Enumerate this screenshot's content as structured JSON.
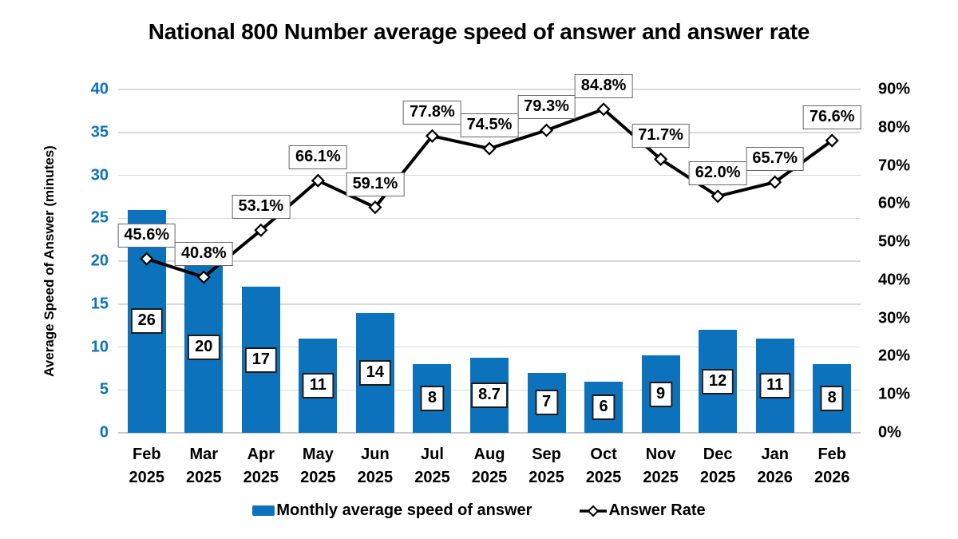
{
  "chart_data": {
    "type": "combo-bar-line",
    "title": "National 800 Number average speed of answer and answer rate",
    "categories": [
      {
        "month": "Feb",
        "year": "2025"
      },
      {
        "month": "Mar",
        "year": "2025"
      },
      {
        "month": "Apr",
        "year": "2025"
      },
      {
        "month": "May",
        "year": "2025"
      },
      {
        "month": "Jun",
        "year": "2025"
      },
      {
        "month": "Jul",
        "year": "2025"
      },
      {
        "month": "Aug",
        "year": "2025"
      },
      {
        "month": "Sep",
        "year": "2025"
      },
      {
        "month": "Oct",
        "year": "2025"
      },
      {
        "month": "Nov",
        "year": "2025"
      },
      {
        "month": "Dec",
        "year": "2025"
      },
      {
        "month": "Jan",
        "year": "2026"
      },
      {
        "month": "Feb",
        "year": "2026"
      }
    ],
    "series": [
      {
        "name": "Monthly average speed of answer",
        "type": "bar",
        "axis": "left",
        "color": "#0C72BC",
        "values": [
          26,
          20,
          17,
          11,
          14,
          8,
          8.7,
          7,
          6,
          9,
          12,
          11,
          8
        ],
        "labels": [
          "26",
          "20",
          "17",
          "11",
          "14",
          "8",
          "8.7",
          "7",
          "6",
          "9",
          "12",
          "11",
          "8"
        ]
      },
      {
        "name": "Answer Rate",
        "type": "line",
        "axis": "right",
        "color": "#000000",
        "marker": "diamond",
        "values": [
          45.6,
          40.8,
          53.1,
          66.1,
          59.1,
          77.8,
          74.5,
          79.3,
          84.8,
          71.7,
          62.0,
          65.7,
          76.6
        ],
        "labels": [
          "45.6%",
          "40.8%",
          "53.1%",
          "66.1%",
          "59.1%",
          "77.8%",
          "74.5%",
          "79.3%",
          "84.8%",
          "71.7%",
          "62.0%",
          "65.7%",
          "76.6%"
        ]
      }
    ],
    "left_axis": {
      "title": "Average Speed of Answer (minutes)",
      "min": 0,
      "max": 40,
      "step": 5,
      "ticks": [
        "0",
        "5",
        "10",
        "15",
        "20",
        "25",
        "30",
        "35",
        "40"
      ],
      "color": "#0C72BC"
    },
    "right_axis": {
      "min": 0,
      "max": 90,
      "step": 10,
      "ticks": [
        "0%",
        "10%",
        "20%",
        "30%",
        "40%",
        "50%",
        "60%",
        "70%",
        "80%",
        "90%"
      ]
    },
    "grid": true,
    "legend_position": "bottom",
    "background": "#FFFFFF"
  }
}
